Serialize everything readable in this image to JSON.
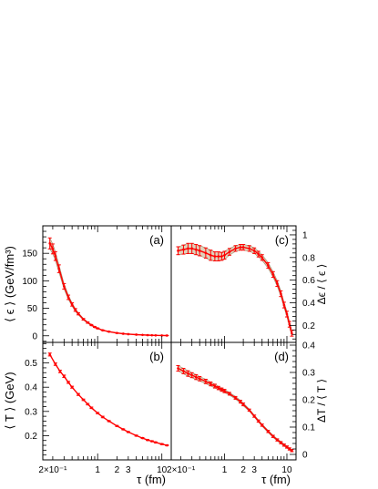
{
  "chart_data": [
    {
      "id": "a",
      "type": "line",
      "panel_label": "(a)",
      "xlabel": "τ (fm)",
      "ylabel": "⟨ ϵ ⟩ (GeV/fm³)",
      "xscale": "log",
      "xlim": [
        0.14,
        14
      ],
      "ylim": [
        -12,
        200
      ],
      "yticks": [
        0,
        50,
        100,
        150
      ],
      "ytick_labels": [
        "0",
        "50",
        "100",
        "150"
      ],
      "band": true,
      "series": [
        {
          "x": [
            0.18,
            0.2,
            0.22,
            0.25,
            0.3,
            0.35,
            0.4,
            0.45,
            0.5,
            0.6,
            0.7,
            0.8,
            0.9,
            1.0,
            1.2,
            1.5,
            2.0,
            2.5,
            3.0,
            4.0,
            5.0,
            6.0,
            7.0,
            8.0,
            10.0,
            12.0
          ],
          "y": [
            168,
            158,
            145,
            122,
            90,
            70,
            57,
            47,
            40,
            30,
            24,
            19.5,
            16,
            13.5,
            10,
            7.5,
            5,
            3.8,
            3,
            2.1,
            1.6,
            1.2,
            1.0,
            0.8,
            0.6,
            0.45
          ],
          "err": [
            10,
            9,
            8,
            7,
            5,
            4,
            3,
            2.5,
            2,
            1.5,
            1.2,
            1,
            0.8,
            0.7,
            0.5,
            0.4,
            0.3,
            0.3,
            0.2,
            0.2,
            0.2,
            0.2,
            0.2,
            0.2,
            0.2,
            0.2
          ]
        }
      ]
    },
    {
      "id": "b",
      "type": "line",
      "panel_label": "(b)",
      "xlabel": "τ (fm)",
      "ylabel": "⟨ T ⟩ (GeV)",
      "xscale": "log",
      "xlim": [
        0.14,
        14
      ],
      "ylim": [
        0.1,
        0.585
      ],
      "yticks": [
        0.2,
        0.3,
        0.4,
        0.5
      ],
      "ytick_labels": [
        "0.2",
        "0.3",
        "0.4",
        "0.5"
      ],
      "xticks": [
        0.2,
        1,
        2,
        3,
        10
      ],
      "xtick_labels": [
        "2×10⁻¹",
        "1",
        "2",
        "3",
        "10"
      ],
      "band": false,
      "series": [
        {
          "x": [
            0.18,
            0.22,
            0.26,
            0.3,
            0.35,
            0.4,
            0.5,
            0.6,
            0.7,
            0.8,
            1.0,
            1.2,
            1.5,
            2.0,
            2.5,
            3.0,
            4.0,
            5.0,
            6.0,
            7.0,
            8.0,
            10.0,
            12.0
          ],
          "y": [
            0.535,
            0.495,
            0.465,
            0.445,
            0.42,
            0.4,
            0.37,
            0.348,
            0.33,
            0.315,
            0.293,
            0.277,
            0.26,
            0.24,
            0.226,
            0.215,
            0.2,
            0.19,
            0.182,
            0.177,
            0.172,
            0.165,
            0.16
          ],
          "err": [
            0.006,
            0.005,
            0.005,
            0.005,
            0.004,
            0.004,
            0.004,
            0.003,
            0.003,
            0.003,
            0.003,
            0.003,
            0.002,
            0.002,
            0.002,
            0.002,
            0.002,
            0.002,
            0.002,
            0.002,
            0.002,
            0.002,
            0.002
          ]
        }
      ]
    },
    {
      "id": "c",
      "type": "line",
      "panel_label": "(c)",
      "xlabel": "τ (fm)",
      "ylabel": "Δϵ / ⟨ ϵ ⟩",
      "yaxis_side": "right",
      "xscale": "log",
      "xlim": [
        0.14,
        14
      ],
      "ylim": [
        0.05,
        1.08
      ],
      "yticks": [
        0.2,
        0.4,
        0.6,
        0.8,
        1
      ],
      "ytick_labels": [
        "0.2",
        "0.4",
        "0.6",
        "0.8",
        "1"
      ],
      "band": true,
      "series": [
        {
          "x": [
            0.18,
            0.22,
            0.26,
            0.3,
            0.35,
            0.4,
            0.5,
            0.6,
            0.7,
            0.8,
            0.9,
            1.0,
            1.2,
            1.5,
            1.8,
            2.0,
            2.5,
            3.0,
            3.5,
            4.0,
            5.0,
            6.0,
            7.0,
            8.0,
            9.0,
            10.0,
            11.0,
            12.0
          ],
          "y": [
            0.86,
            0.87,
            0.88,
            0.88,
            0.87,
            0.86,
            0.84,
            0.82,
            0.81,
            0.81,
            0.81,
            0.82,
            0.85,
            0.88,
            0.89,
            0.89,
            0.88,
            0.86,
            0.83,
            0.8,
            0.73,
            0.65,
            0.57,
            0.48,
            0.38,
            0.3,
            0.21,
            0.13
          ],
          "err": [
            0.035,
            0.04,
            0.045,
            0.045,
            0.045,
            0.045,
            0.045,
            0.045,
            0.04,
            0.04,
            0.035,
            0.035,
            0.03,
            0.025,
            0.025,
            0.025,
            0.025,
            0.025,
            0.025,
            0.025,
            0.025,
            0.025,
            0.025,
            0.025,
            0.025,
            0.025,
            0.025,
            0.025
          ]
        }
      ]
    },
    {
      "id": "d",
      "type": "line",
      "panel_label": "(d)",
      "xlabel": "τ (fm)",
      "ylabel": "ΔT / ⟨ T ⟩",
      "yaxis_side": "right",
      "xscale": "log",
      "xlim": [
        0.14,
        14
      ],
      "ylim": [
        -0.02,
        0.41
      ],
      "yticks": [
        0,
        0.1,
        0.2,
        0.3,
        0.4
      ],
      "ytick_labels": [
        "0",
        "0.1",
        "0.2",
        "0.3",
        "0.4"
      ],
      "xticks": [
        0.2,
        1,
        2,
        3,
        10
      ],
      "xtick_labels": [
        "2×10⁻¹",
        "1",
        "2",
        "3",
        "10"
      ],
      "band": true,
      "series": [
        {
          "x": [
            0.18,
            0.22,
            0.26,
            0.3,
            0.35,
            0.4,
            0.5,
            0.6,
            0.7,
            0.8,
            0.9,
            1.0,
            1.2,
            1.5,
            1.8,
            2.0,
            2.5,
            3.0,
            3.5,
            4.0,
            5.0,
            6.0,
            7.0,
            8.0,
            9.0,
            10.0,
            11.0,
            12.0
          ],
          "y": [
            0.315,
            0.305,
            0.296,
            0.29,
            0.283,
            0.277,
            0.267,
            0.258,
            0.25,
            0.243,
            0.237,
            0.232,
            0.222,
            0.207,
            0.193,
            0.183,
            0.162,
            0.14,
            0.122,
            0.107,
            0.084,
            0.066,
            0.053,
            0.043,
            0.034,
            0.027,
            0.02,
            0.014
          ],
          "err": [
            0.01,
            0.01,
            0.01,
            0.009,
            0.009,
            0.008,
            0.008,
            0.007,
            0.007,
            0.006,
            0.006,
            0.006,
            0.005,
            0.005,
            0.005,
            0.005,
            0.004,
            0.004,
            0.004,
            0.004,
            0.004,
            0.004,
            0.004,
            0.004,
            0.004,
            0.004,
            0.004,
            0.004
          ]
        }
      ]
    }
  ],
  "colors": {
    "line": "#ff0000",
    "band_fill": "#d8cbb0",
    "band_edge": "#a08a6a",
    "axis": "#000000"
  }
}
